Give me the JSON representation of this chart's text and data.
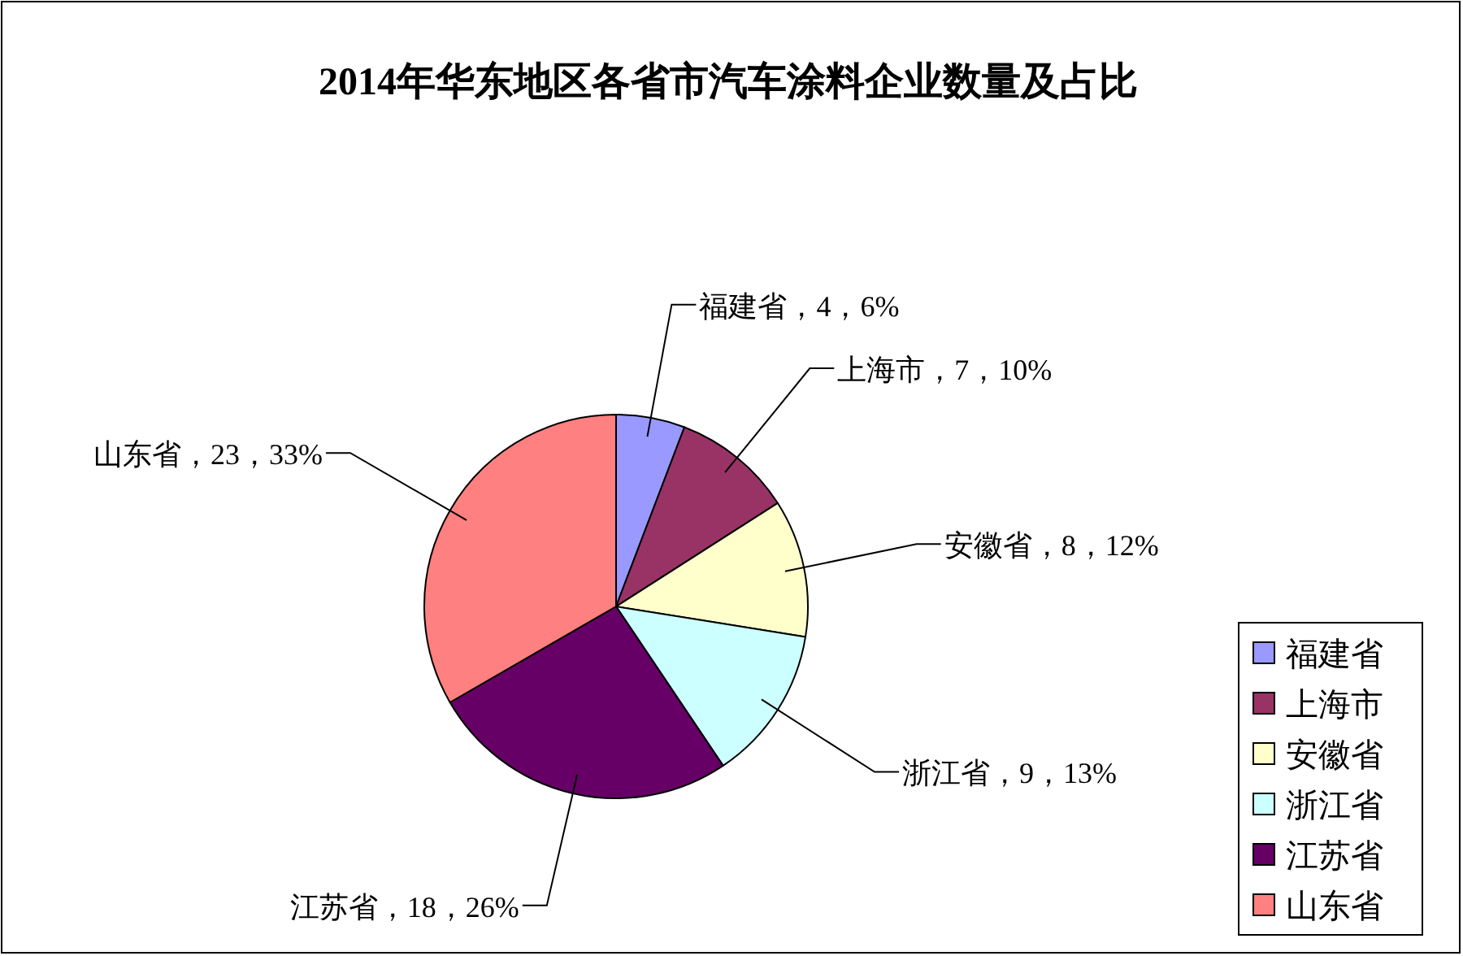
{
  "chart_data": {
    "type": "pie",
    "title": "2014年华东地区各省市汽车涂料企业数量及占比",
    "categories": [
      "福建省",
      "上海市",
      "安徽省",
      "浙江省",
      "江苏省",
      "山东省"
    ],
    "values": [
      4,
      7,
      8,
      9,
      18,
      23
    ],
    "colors": [
      "#9999ff",
      "#993366",
      "#ffffcc",
      "#ccffff",
      "#660066",
      "#ff8080"
    ],
    "value_labels": [
      "福建省，4，6%",
      "上海市，7，10%",
      "安徽省，8，12%",
      "浙江省，9，13%",
      "江苏省，18，26%",
      "山东省，23，33%"
    ],
    "legend": "bottom right"
  }
}
